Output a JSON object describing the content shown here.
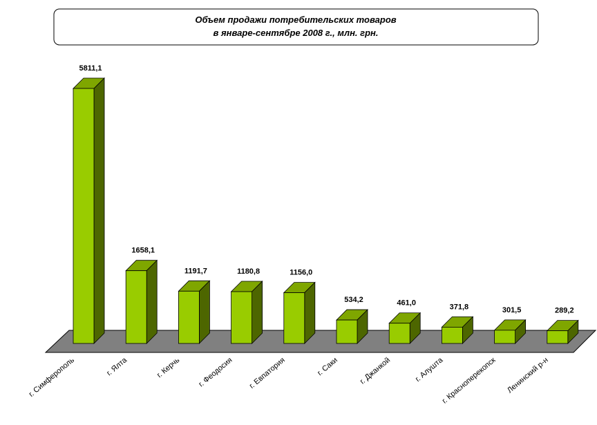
{
  "chart_data": {
    "type": "bar3d",
    "title": [
      "Объем продажи потребительских товаров",
      "в январе-сентябре 2008 г., млн. грн."
    ],
    "categories": [
      "г. Симферополь",
      "г. Ялта",
      "г. Керчь",
      "г. Феодосия",
      "г. Евпатория",
      "г. Саки",
      "г. Джанкой",
      "г. Алушта",
      "г. Красноперекопск",
      "Ленинский р-н"
    ],
    "values": [
      5811.1,
      1658.1,
      1191.7,
      1180.8,
      1156.0,
      534.2,
      461.0,
      371.8,
      301.5,
      289.2
    ],
    "value_labels": [
      "5811,1",
      "1658,1",
      "1191,7",
      "1180,8",
      "1156,0",
      "534,2",
      "461,0",
      "371,8",
      "301,5",
      "289,2"
    ],
    "color": "#99cc00"
  }
}
